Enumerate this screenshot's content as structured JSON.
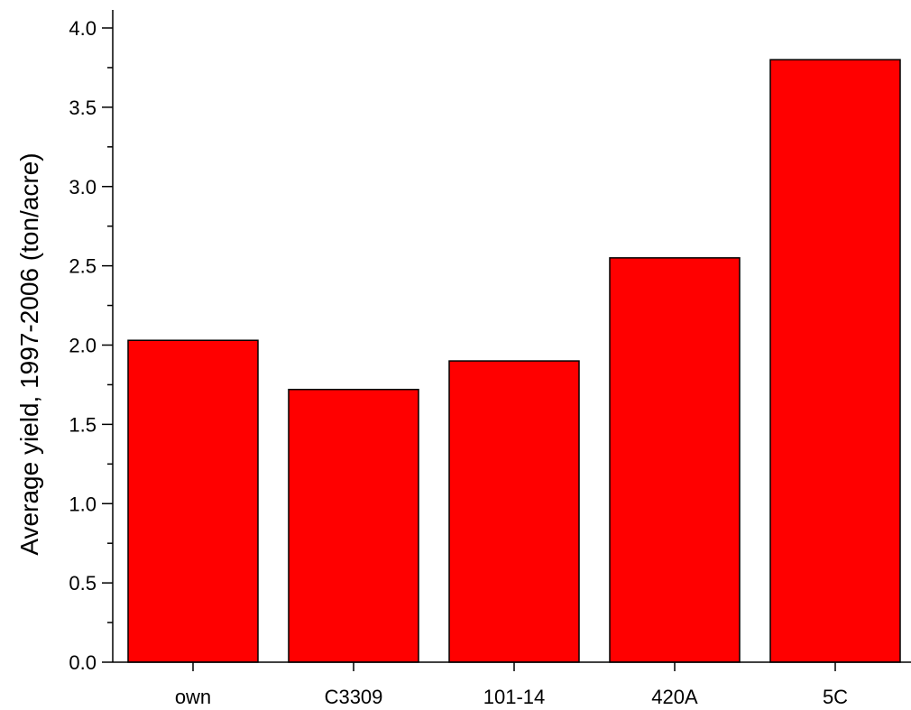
{
  "chart_data": {
    "type": "bar",
    "title": "",
    "xlabel": "",
    "ylabel": "Average yield, 1997-2006 (ton/acre)",
    "categories": [
      "own",
      "C3309",
      "101-14",
      "420A",
      "5C"
    ],
    "values": [
      2.03,
      1.72,
      1.9,
      2.55,
      3.8
    ],
    "ylim": [
      0,
      4.0
    ],
    "yticks": [
      "0.0",
      "0.5",
      "1.0",
      "1.5",
      "2.0",
      "2.5",
      "3.0",
      "3.5",
      "4.0"
    ],
    "grid": false,
    "legend": "none",
    "bar_color": "#ff0000",
    "bar_edge_color": "#000000"
  }
}
